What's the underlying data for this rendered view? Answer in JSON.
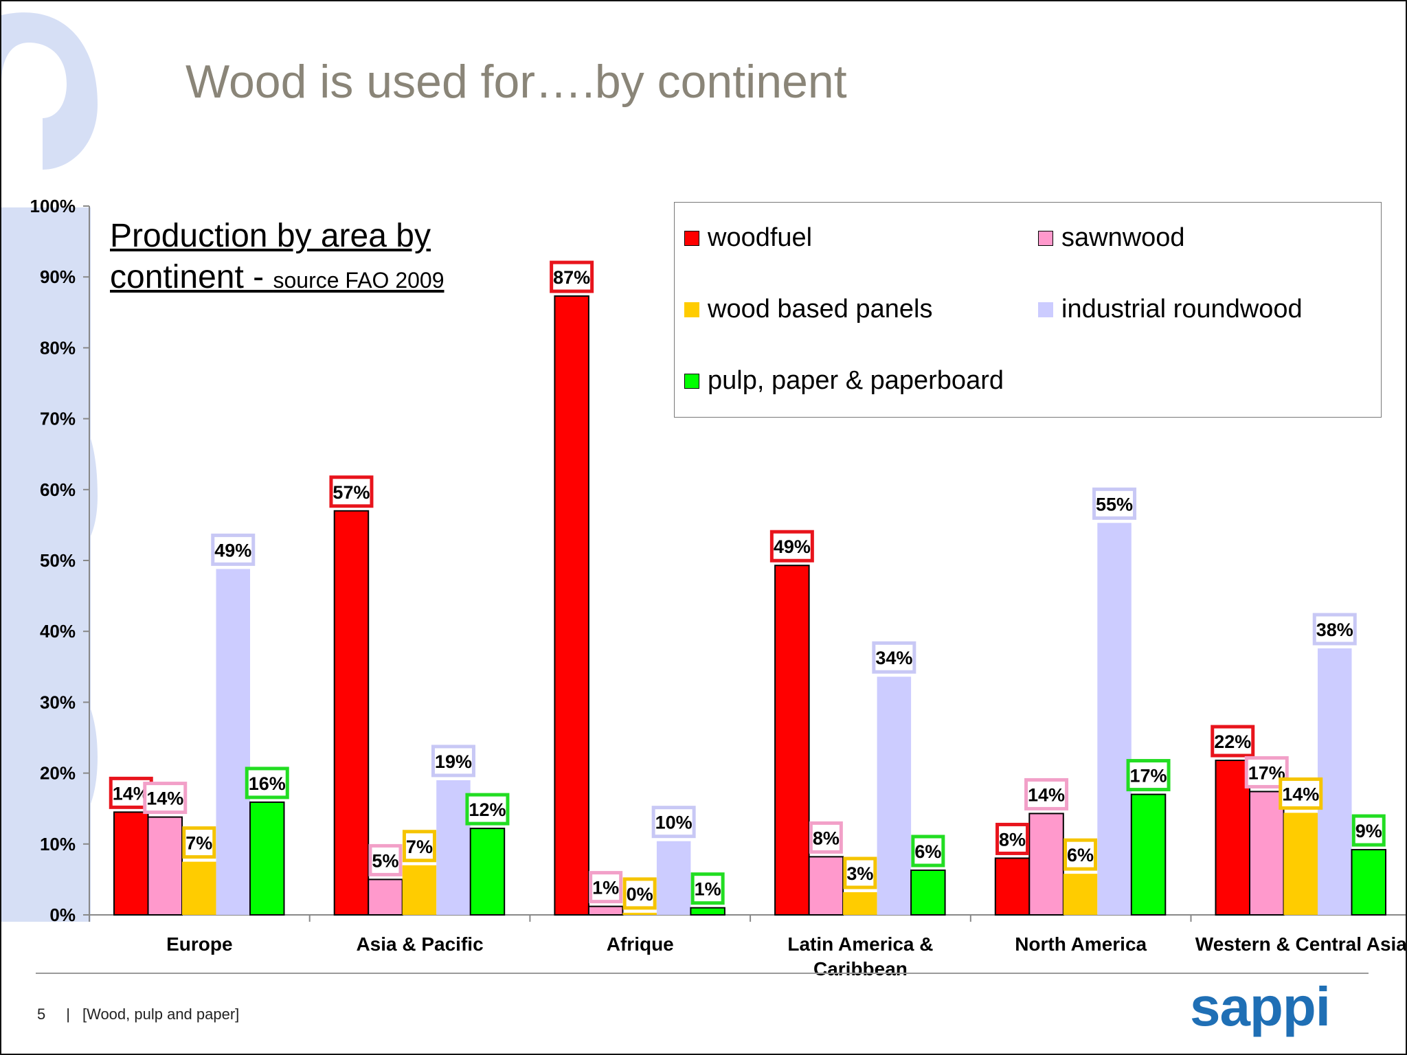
{
  "slide": {
    "title": "Wood is used for….by continent",
    "subtitle_main_line1": "Production by area by",
    "subtitle_main_line2": "continent - ",
    "subtitle_source": "source FAO 2009",
    "page_number": "5",
    "footer_separator": "|",
    "footer_text": "[Wood, pulp and paper]",
    "logo_text": "sappi",
    "watermark_color": "#d6dff5"
  },
  "chart_data": {
    "type": "bar",
    "title": "",
    "xlabel": "",
    "ylabel": "",
    "ylim": [
      0,
      100
    ],
    "y_ticks": [
      "0%",
      "10%",
      "20%",
      "30%",
      "40%",
      "50%",
      "60%",
      "70%",
      "80%",
      "90%",
      "100%"
    ],
    "legend_position": "top-right",
    "categories": [
      "Europe",
      "Asia & Pacific",
      "Afrique",
      "Latin America & Caribbean",
      "North America",
      "Western & Central Asia"
    ],
    "series": [
      {
        "name": "woodfuel",
        "color": "#ff0000",
        "label_border": "#e8141c",
        "outline": true,
        "values": [
          14.5,
          57,
          87.3,
          49.3,
          8,
          21.8
        ],
        "labels": [
          "14%",
          "57%",
          "87%",
          "49%",
          "8%",
          "22%"
        ]
      },
      {
        "name": "sawnwood",
        "color": "#ff99cc",
        "label_border": "#f2a0c8",
        "outline": true,
        "values": [
          13.8,
          5,
          1.2,
          8.2,
          14.3,
          17.4
        ],
        "labels": [
          "14%",
          "5%",
          "1%",
          "8%",
          "14%",
          "17%"
        ]
      },
      {
        "name": "wood based panels",
        "color": "#ffcc00",
        "label_border": "#f5c400",
        "outline": false,
        "values": [
          7.5,
          7,
          0.3,
          3.2,
          5.8,
          14.4
        ],
        "labels": [
          "7%",
          "7%",
          "0%",
          "3%",
          "6%",
          "14%"
        ]
      },
      {
        "name": "industrial roundwood",
        "color": "#ccccff",
        "label_border": "#c8c8f5",
        "outline": false,
        "values": [
          48.8,
          19,
          10.4,
          33.6,
          55.3,
          37.6
        ],
        "labels": [
          "49%",
          "19%",
          "10%",
          "34%",
          "55%",
          "38%"
        ]
      },
      {
        "name": "pulp, paper & paperboard",
        "color": "#00ff00",
        "label_border": "#22dd22",
        "outline": true,
        "values": [
          15.9,
          12.2,
          1,
          6.3,
          17,
          9.2
        ],
        "labels": [
          "16%",
          "12%",
          "1%",
          "6%",
          "17%",
          "9%"
        ]
      }
    ]
  }
}
